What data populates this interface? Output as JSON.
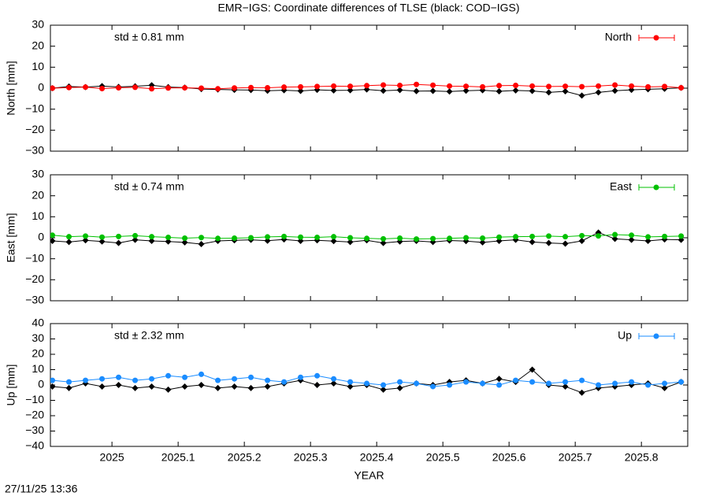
{
  "title": "EMR−IGS: Coordinate differences of TLSE (black: COD−IGS)",
  "timestamp": "27/11/25 13:36",
  "chart_data": [
    {
      "type": "line",
      "ylabel": "North [mm]",
      "annotation": "std ± 0.81 mm",
      "xlim": [
        2024.907,
        2025.87
      ],
      "xticks": [
        2025,
        2025.1,
        2025.2,
        2025.3,
        2025.4,
        2025.5,
        2025.6,
        2025.7,
        2025.8
      ],
      "ylim": [
        -30,
        30
      ],
      "yticks": [
        {
          "value": -30,
          "label": "−30"
        },
        {
          "value": -20,
          "label": "−20"
        },
        {
          "value": -10,
          "label": "−10"
        },
        0,
        10,
        20,
        30
      ],
      "x": [
        2024.91,
        2024.935,
        2024.96,
        2024.985,
        2025.01,
        2025.035,
        2025.06,
        2025.085,
        2025.11,
        2025.135,
        2025.16,
        2025.185,
        2025.21,
        2025.235,
        2025.26,
        2025.285,
        2025.31,
        2025.335,
        2025.36,
        2025.385,
        2025.41,
        2025.435,
        2025.46,
        2025.485,
        2025.51,
        2025.535,
        2025.56,
        2025.585,
        2025.61,
        2025.635,
        2025.66,
        2025.685,
        2025.71,
        2025.735,
        2025.76,
        2025.785,
        2025.81,
        2025.835,
        2025.86
      ],
      "series": [
        {
          "color": "#000000",
          "values": [
            0,
            0.8,
            0.5,
            1.0,
            0.6,
            0.9,
            1.4,
            0.5,
            0.3,
            -0.4,
            -0.6,
            -0.8,
            -0.9,
            -1.2,
            -1.0,
            -1.3,
            -0.8,
            -1.1,
            -1.0,
            -0.6,
            -1.2,
            -0.9,
            -1.4,
            -1.3,
            -1.6,
            -1.2,
            -1.0,
            -1.5,
            -1.1,
            -1.3,
            -2.0,
            -1.5,
            -3.5,
            -2.0,
            -1.2,
            -0.8,
            -0.5,
            -0.3,
            0.2
          ]
        },
        {
          "name": "North",
          "color": "#ff0000",
          "values": [
            0,
            0.3,
            0.5,
            -0.2,
            0.2,
            0.4,
            -0.3,
            0.1,
            0.2,
            0,
            -0.3,
            0.1,
            0.3,
            0.2,
            0.5,
            0.6,
            0.8,
            1.0,
            0.9,
            1.2,
            1.5,
            1.3,
            1.8,
            1.4,
            1.0,
            0.9,
            0.6,
            1.2,
            1.3,
            1.0,
            0.8,
            0.9,
            0.7,
            1.0,
            1.5,
            1.0,
            0.6,
            0.8,
            0.2
          ]
        }
      ]
    },
    {
      "type": "line",
      "ylabel": "East [mm]",
      "annotation": "std ± 0.74 mm",
      "xlim": [
        2024.907,
        2025.87
      ],
      "xticks": [
        2025,
        2025.1,
        2025.2,
        2025.3,
        2025.4,
        2025.5,
        2025.6,
        2025.7,
        2025.8
      ],
      "ylim": [
        -30,
        30
      ],
      "yticks": [
        {
          "value": -30,
          "label": "−30"
        },
        {
          "value": -20,
          "label": "−20"
        },
        {
          "value": -10,
          "label": "−10"
        },
        0,
        10,
        20,
        30
      ],
      "x": [
        2024.91,
        2024.935,
        2024.96,
        2024.985,
        2025.01,
        2025.035,
        2025.06,
        2025.085,
        2025.11,
        2025.135,
        2025.16,
        2025.185,
        2025.21,
        2025.235,
        2025.26,
        2025.285,
        2025.31,
        2025.335,
        2025.36,
        2025.385,
        2025.41,
        2025.435,
        2025.46,
        2025.485,
        2025.51,
        2025.535,
        2025.56,
        2025.585,
        2025.61,
        2025.635,
        2025.66,
        2025.685,
        2025.71,
        2025.735,
        2025.76,
        2025.785,
        2025.81,
        2025.835,
        2025.86
      ],
      "series": [
        {
          "color": "#000000",
          "values": [
            -1.5,
            -2.0,
            -1.2,
            -1.8,
            -2.5,
            -1.0,
            -1.5,
            -1.8,
            -2.2,
            -3.0,
            -1.5,
            -1.2,
            -1.0,
            -1.4,
            -0.8,
            -1.5,
            -1.2,
            -1.6,
            -2.0,
            -1.2,
            -2.5,
            -1.8,
            -1.5,
            -2.0,
            -1.3,
            -1.6,
            -2.2,
            -1.5,
            -1.0,
            -2.0,
            -2.5,
            -2.8,
            -1.5,
            2.5,
            -0.5,
            -1.0,
            -1.5,
            -0.8,
            -1.0
          ]
        },
        {
          "name": "East",
          "color": "#00c000",
          "values": [
            1.2,
            0.5,
            0.8,
            0.3,
            0.6,
            1.0,
            0.5,
            0.2,
            -0.2,
            0.1,
            -0.3,
            -0.2,
            0.0,
            0.4,
            0.6,
            0.3,
            0.2,
            0.5,
            0.0,
            -0.3,
            -0.5,
            -0.2,
            -0.6,
            -0.4,
            -0.3,
            0.0,
            -0.2,
            0.3,
            0.5,
            0.6,
            0.8,
            0.5,
            1.0,
            0.9,
            1.5,
            1.2,
            0.4,
            0.6,
            0.8
          ]
        }
      ]
    },
    {
      "type": "line",
      "ylabel": "Up [mm]",
      "annotation": "std ± 2.32 mm",
      "xlabel": "YEAR",
      "xlim": [
        2024.907,
        2025.87
      ],
      "xticks": [
        2025,
        2025.1,
        2025.2,
        2025.3,
        2025.4,
        2025.5,
        2025.6,
        2025.7,
        2025.8
      ],
      "ylim": [
        -40,
        40
      ],
      "yticks": [
        {
          "value": -40,
          "label": "−40"
        },
        {
          "value": -30,
          "label": "−30"
        },
        {
          "value": -20,
          "label": "−20"
        },
        {
          "value": -10,
          "label": "−10"
        },
        0,
        10,
        20,
        30,
        40
      ],
      "x": [
        2024.91,
        2024.935,
        2024.96,
        2024.985,
        2025.01,
        2025.035,
        2025.06,
        2025.085,
        2025.11,
        2025.135,
        2025.16,
        2025.185,
        2025.21,
        2025.235,
        2025.26,
        2025.285,
        2025.31,
        2025.335,
        2025.36,
        2025.385,
        2025.41,
        2025.435,
        2025.46,
        2025.485,
        2025.51,
        2025.535,
        2025.56,
        2025.585,
        2025.61,
        2025.635,
        2025.66,
        2025.685,
        2025.71,
        2025.735,
        2025.76,
        2025.785,
        2025.81,
        2025.835,
        2025.86
      ],
      "series": [
        {
          "color": "#000000",
          "values": [
            -1,
            -2,
            1,
            -1,
            0,
            -2,
            -1,
            -3,
            -1,
            0,
            -2,
            -1,
            -2,
            -1,
            1,
            3,
            0,
            1,
            -1,
            0,
            -3,
            -2,
            1,
            0,
            2,
            3,
            1,
            4,
            2,
            10,
            0,
            -1,
            -5,
            -2,
            -1,
            0,
            1,
            -2,
            2
          ]
        },
        {
          "name": "Up",
          "color": "#1a8cff",
          "values": [
            3,
            2,
            3,
            4,
            5,
            3,
            4,
            6,
            5,
            7,
            3,
            4,
            5,
            3,
            2,
            5,
            6,
            4,
            2,
            1,
            0,
            2,
            1,
            -1,
            0,
            2,
            1,
            0,
            3,
            2,
            1,
            2,
            3,
            0,
            1,
            2,
            0,
            1,
            2
          ]
        }
      ]
    }
  ]
}
